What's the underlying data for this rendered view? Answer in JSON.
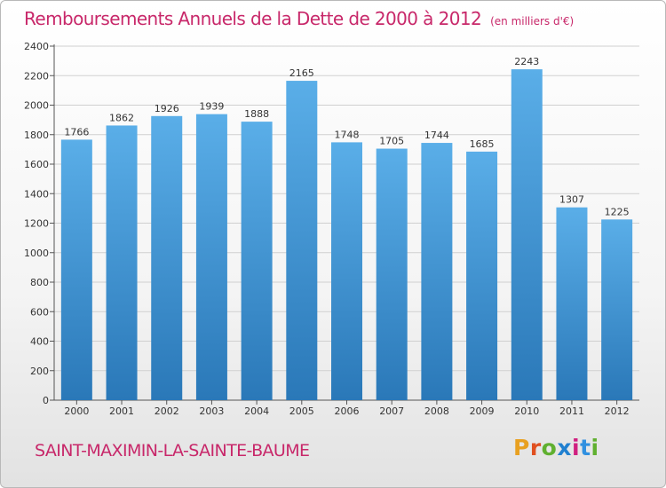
{
  "header": {
    "title": "Remboursements Annuels de la Dette de 2000 à 2012",
    "unit": "(en milliers d'€)"
  },
  "footer": {
    "commune": "SAINT-MAXIMIN-LA-SAINTE-BAUME",
    "logo": "Proxiti"
  },
  "colors": {
    "title": "#c8286a",
    "bar_top": "#5aaee8",
    "bar_bottom": "#2a78b8",
    "grid": "#d0d0d0",
    "logo_letters": [
      "#e8a020",
      "#e05020",
      "#60b030",
      "#2080d0",
      "#d02080",
      "#3090e0",
      "#60b030"
    ]
  },
  "chart_data": {
    "type": "bar",
    "categories": [
      "2000",
      "2001",
      "2002",
      "2003",
      "2004",
      "2005",
      "2006",
      "2007",
      "2008",
      "2009",
      "2010",
      "2011",
      "2012"
    ],
    "values": [
      1766,
      1862,
      1926,
      1939,
      1888,
      2165,
      1748,
      1705,
      1744,
      1685,
      2243,
      1307,
      1225
    ],
    "title": "Remboursements Annuels de la Dette de 2000 à 2012",
    "xlabel": "",
    "ylabel": "",
    "ylim": [
      0,
      2400
    ],
    "yticks": [
      0,
      200,
      400,
      600,
      800,
      1000,
      1200,
      1400,
      1600,
      1800,
      2000,
      2200,
      2400
    ],
    "grid": true,
    "data_labels": true
  }
}
